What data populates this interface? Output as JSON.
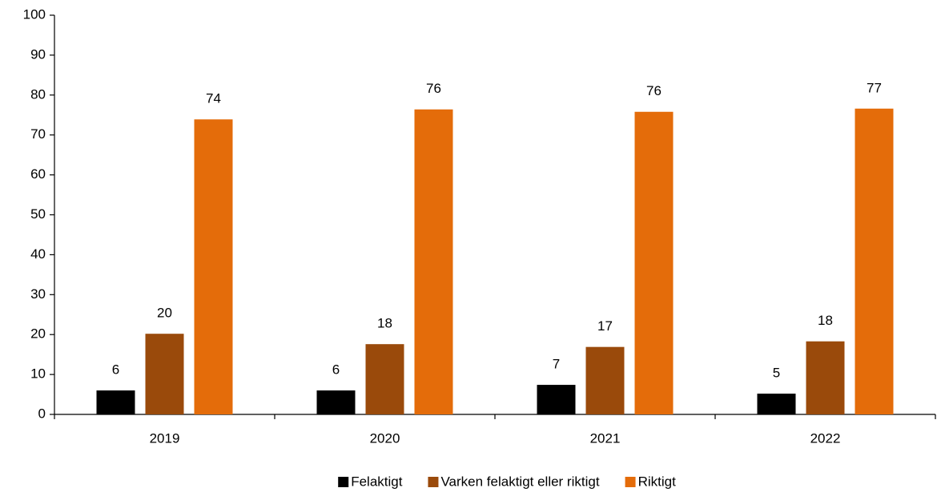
{
  "chart_data": {
    "type": "bar",
    "categories": [
      "2019",
      "2020",
      "2021",
      "2022"
    ],
    "series": [
      {
        "name": "Felaktigt",
        "color": "#000000",
        "values": [
          6.0,
          6.0,
          7.4,
          5.2
        ],
        "value_labels": [
          "6",
          "6",
          "7",
          "5"
        ]
      },
      {
        "name": "Varken felaktigt eller riktigt",
        "color": "#9a4a0b",
        "values": [
          20.2,
          17.6,
          16.9,
          18.3
        ],
        "value_labels": [
          "20",
          "18",
          "17",
          "18"
        ]
      },
      {
        "name": "Riktigt",
        "color": "#e46c0a",
        "values": [
          73.9,
          76.4,
          75.8,
          76.6
        ],
        "value_labels": [
          "74",
          "76",
          "76",
          "77"
        ]
      }
    ],
    "ylim": [
      0,
      100
    ],
    "yticks": [
      0,
      10,
      20,
      30,
      40,
      50,
      60,
      70,
      80,
      90,
      100
    ],
    "grid": false,
    "legend": "bottom"
  }
}
